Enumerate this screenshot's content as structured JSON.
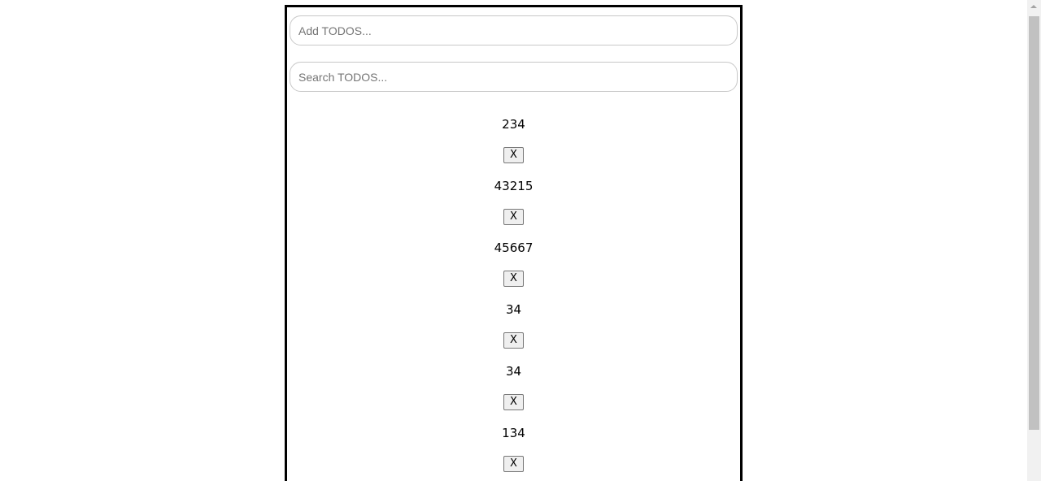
{
  "add_input": {
    "placeholder": "Add TODOS...",
    "value": ""
  },
  "search_input": {
    "placeholder": "Search TODOS...",
    "value": ""
  },
  "todos": [
    {
      "text": "234",
      "delete_label": "X"
    },
    {
      "text": "43215",
      "delete_label": "X"
    },
    {
      "text": "45667",
      "delete_label": "X"
    },
    {
      "text": "34",
      "delete_label": "X"
    },
    {
      "text": "34",
      "delete_label": "X"
    },
    {
      "text": "134",
      "delete_label": "X"
    }
  ]
}
